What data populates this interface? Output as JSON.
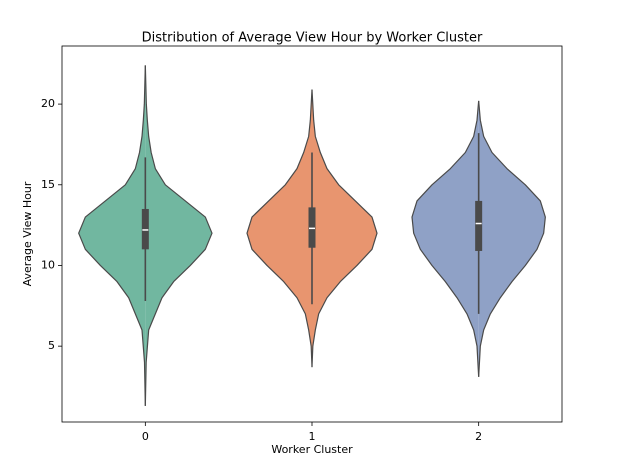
{
  "chart_data": {
    "type": "violin",
    "title": "Distribution of Average View Hour by Worker Cluster",
    "x_label": "Worker Cluster",
    "y_label": "Average View Hour",
    "categories": [
      "0",
      "1",
      "2"
    ],
    "colors": [
      "#71b7a0",
      "#e8956f",
      "#8fa1c6"
    ],
    "ylim": [
      0.3,
      23.6
    ],
    "yticks": [
      5,
      10,
      15,
      20
    ],
    "violins": [
      {
        "whisker_low": 7.8,
        "q1": 11.0,
        "median": 12.2,
        "q3": 13.5,
        "whisker_high": 16.7,
        "density": {
          "y": [
            1.3,
            4,
            6,
            8,
            9,
            10,
            11,
            12,
            13,
            14,
            15,
            16,
            17,
            18,
            19,
            20,
            22.4
          ],
          "width": [
            0,
            0.005,
            0.02,
            0.1,
            0.17,
            0.27,
            0.36,
            0.4,
            0.36,
            0.24,
            0.12,
            0.06,
            0.035,
            0.02,
            0.012,
            0.006,
            0
          ]
        }
      },
      {
        "whisker_low": 7.6,
        "q1": 11.1,
        "median": 12.3,
        "q3": 13.6,
        "whisker_high": 17.0,
        "density": {
          "y": [
            3.7,
            5,
            6,
            7,
            8,
            9,
            10,
            11,
            12,
            13,
            14,
            15,
            16,
            17,
            18,
            19,
            20.9
          ],
          "width": [
            0,
            0.005,
            0.02,
            0.04,
            0.09,
            0.17,
            0.27,
            0.36,
            0.39,
            0.36,
            0.26,
            0.16,
            0.09,
            0.05,
            0.02,
            0.01,
            0
          ]
        }
      },
      {
        "whisker_low": 7.0,
        "q1": 10.9,
        "median": 12.6,
        "q3": 14.0,
        "whisker_high": 18.2,
        "density": {
          "y": [
            3.1,
            5,
            6,
            7,
            8,
            9,
            10,
            11,
            12,
            13,
            14,
            15,
            16,
            17,
            18,
            19,
            20.2
          ],
          "width": [
            0,
            0.01,
            0.03,
            0.07,
            0.13,
            0.2,
            0.28,
            0.35,
            0.39,
            0.4,
            0.37,
            0.28,
            0.17,
            0.08,
            0.03,
            0.01,
            0
          ]
        }
      }
    ]
  }
}
